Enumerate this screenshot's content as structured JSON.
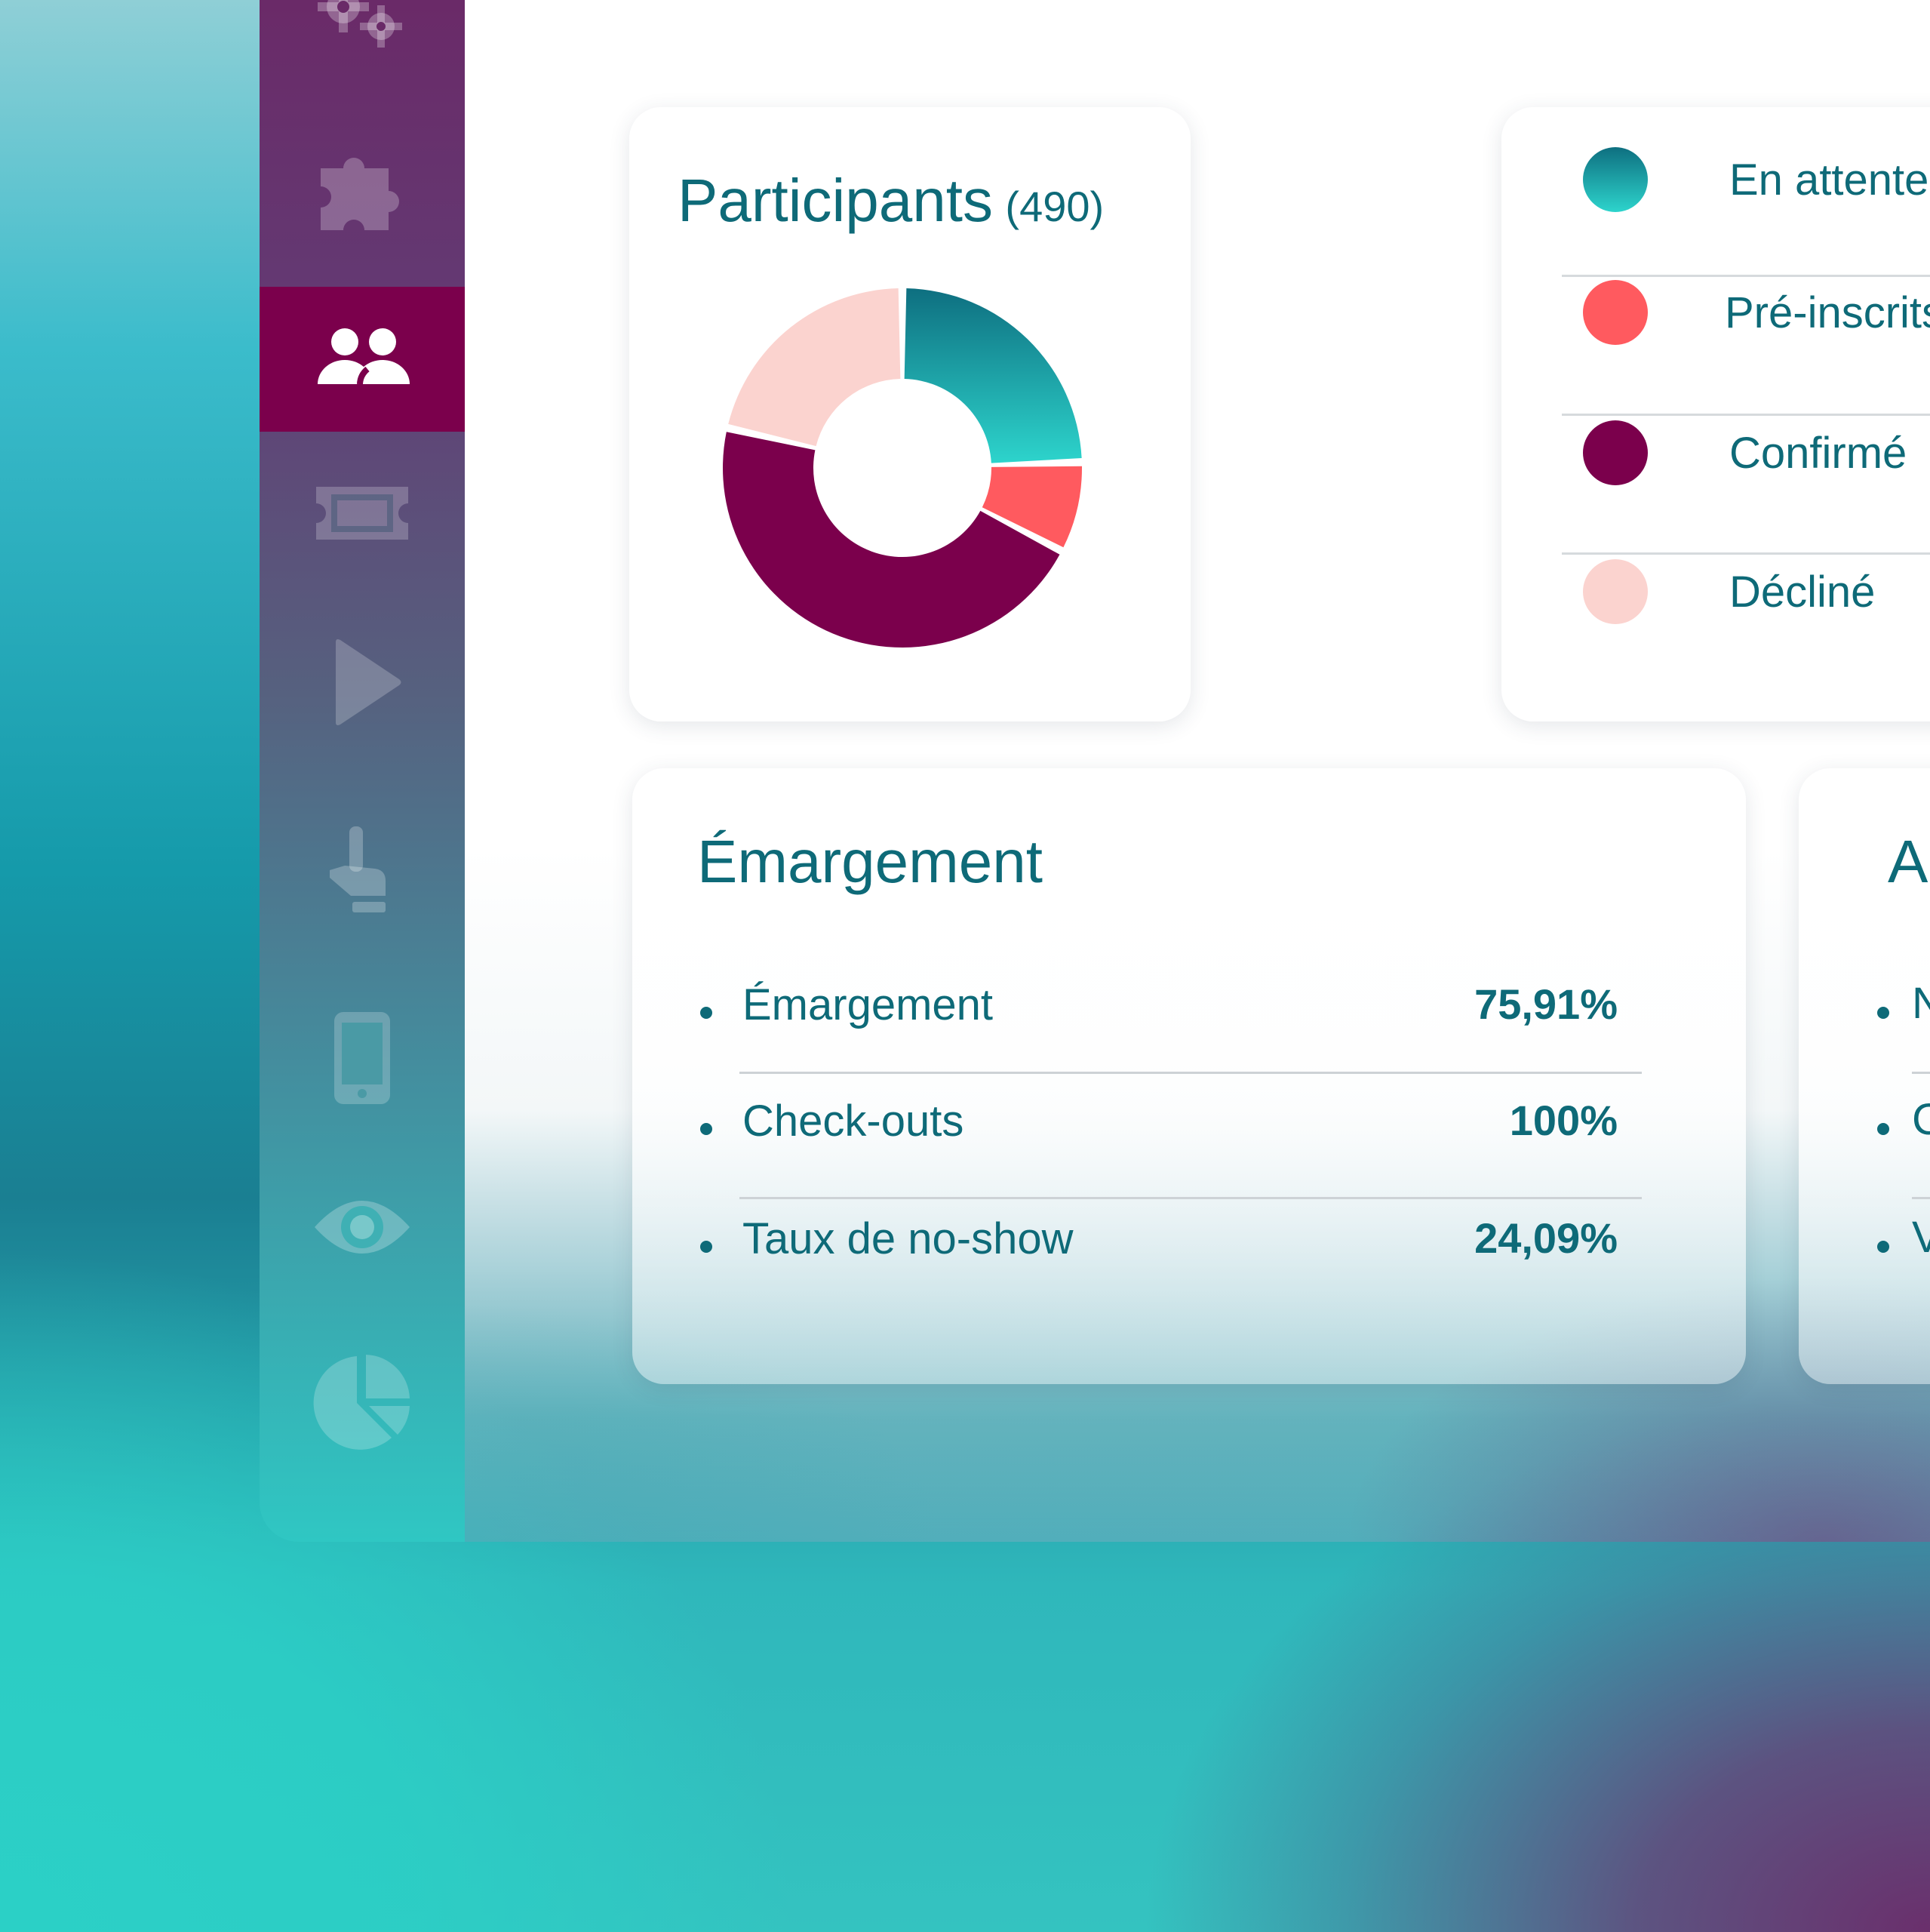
{
  "sidebar": {
    "items": [
      {
        "icon": "gears-icon",
        "active": false
      },
      {
        "icon": "puzzle-icon",
        "active": false
      },
      {
        "icon": "users-icon",
        "active": true
      },
      {
        "icon": "ticket-icon",
        "active": false
      },
      {
        "icon": "play-icon",
        "active": false
      },
      {
        "icon": "hand-pointer-icon",
        "active": false
      },
      {
        "icon": "mobile-icon",
        "active": false
      },
      {
        "icon": "eye-icon",
        "active": false
      },
      {
        "icon": "pie-chart-icon",
        "active": false
      }
    ],
    "active_color": "#7b004c"
  },
  "participants": {
    "title": "Participants",
    "count": "(490)"
  },
  "legend": {
    "items": [
      {
        "label": "En attente de réponse",
        "color": "#1a9ea6"
      },
      {
        "label": "Pré-inscrits",
        "color": "#ff5a5f"
      },
      {
        "label": "Confirmé",
        "color": "#7b004c"
      },
      {
        "label": "Décliné",
        "color": "#fbd3cf"
      }
    ]
  },
  "emargement": {
    "title": "Émargement",
    "rows": [
      {
        "label": "Émargement",
        "value": "75,91%"
      },
      {
        "label": "Check-outs",
        "value": "100%"
      },
      {
        "label": "Taux de no-show",
        "value": "24,09%"
      }
    ]
  },
  "partial_card": {
    "title_fragment": "A",
    "row_fragments": [
      "N",
      "C",
      "V"
    ]
  },
  "chart_data": {
    "type": "pie",
    "title": "Participants",
    "categories": [
      "En attente de réponse",
      "Pré-inscrits",
      "Confirmé",
      "Décliné"
    ],
    "values": [
      24,
      8,
      45,
      21
    ],
    "colors": [
      "#1a9ea6",
      "#ff5a5f",
      "#7b004c",
      "#fbd3cf"
    ],
    "donut": true
  }
}
